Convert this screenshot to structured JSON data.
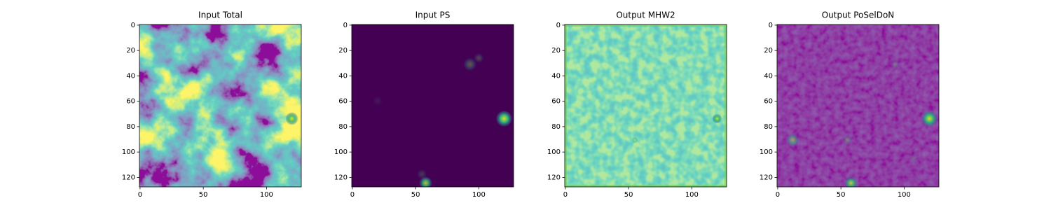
{
  "chart_data": [
    {
      "type": "image",
      "title": "Input Total",
      "xlim": [
        -0.5,
        127.5
      ],
      "ylim": [
        127.5,
        -0.5
      ],
      "xticks": [
        0,
        50,
        100
      ],
      "yticks": [
        0,
        20,
        40,
        60,
        80,
        100,
        120
      ]
    },
    {
      "type": "image",
      "title": "Input PS",
      "xlim": [
        -0.5,
        127.5
      ],
      "ylim": [
        127.5,
        -0.5
      ],
      "xticks": [
        0,
        50,
        100
      ],
      "yticks": [
        0,
        20,
        40,
        60,
        80,
        100,
        120
      ]
    },
    {
      "type": "image",
      "title": "Output MHW2",
      "xlim": [
        -0.5,
        127.5
      ],
      "ylim": [
        127.5,
        -0.5
      ],
      "xticks": [
        0,
        50,
        100
      ],
      "yticks": [
        0,
        20,
        40,
        60,
        80,
        100,
        120
      ]
    },
    {
      "type": "image",
      "title": "Output PoSelDoN",
      "xlim": [
        -0.5,
        127.5
      ],
      "ylim": [
        127.5,
        -0.5
      ],
      "xticks": [
        0,
        50,
        100
      ],
      "yticks": [
        0,
        20,
        40,
        60,
        80,
        100,
        120
      ]
    }
  ]
}
